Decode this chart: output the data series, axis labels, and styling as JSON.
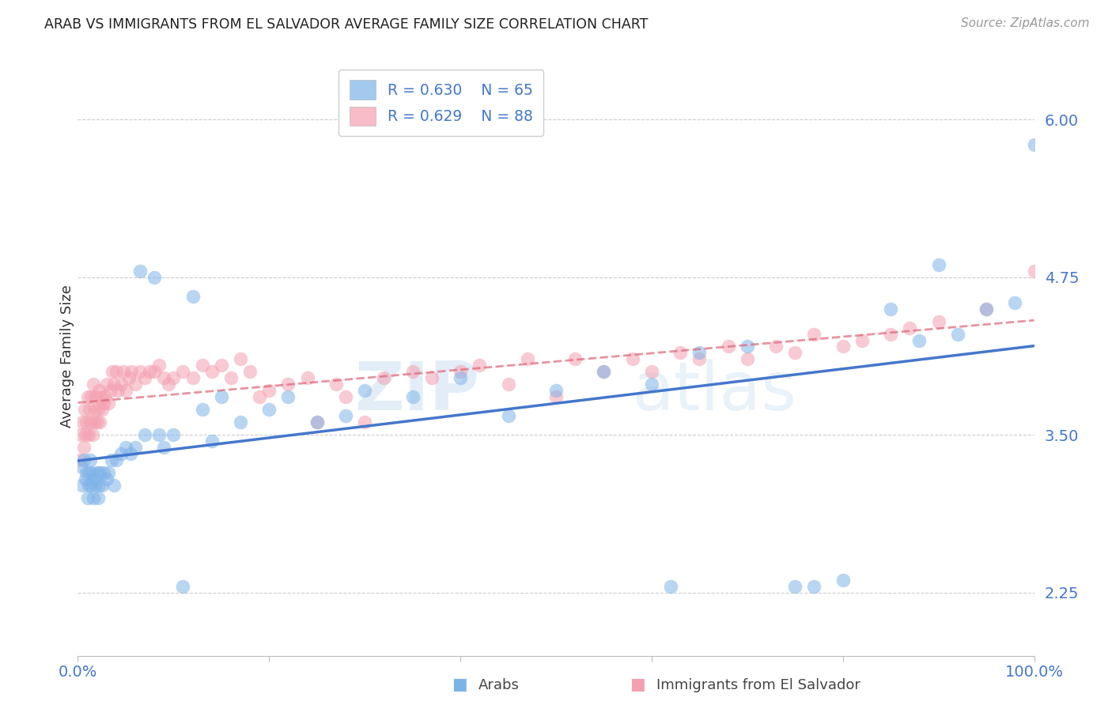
{
  "title": "ARAB VS IMMIGRANTS FROM EL SALVADOR AVERAGE FAMILY SIZE CORRELATION CHART",
  "source": "Source: ZipAtlas.com",
  "ylabel": "Average Family Size",
  "yticks": [
    2.25,
    3.5,
    4.75,
    6.0
  ],
  "ytick_labels": [
    "2.25",
    "3.50",
    "4.75",
    "6.00"
  ],
  "legend_arab_r": "R = 0.630",
  "legend_arab_n": "N = 65",
  "legend_salvador_r": "R = 0.629",
  "legend_salvador_n": "N = 88",
  "legend_label_arab": "Arabs",
  "legend_label_salvador": "Immigrants from El Salvador",
  "arab_color": "#7EB3E8",
  "salvador_color": "#F4A0B0",
  "arab_line_color": "#4477CC",
  "salvador_line_color": "#DD6677",
  "watermark_zip": "ZIP",
  "watermark_atlas": "atlas",
  "xmin": 0,
  "xmax": 100,
  "ymin": 1.75,
  "ymax": 6.5,
  "background_color": "#FFFFFF",
  "grid_color": "#CCCCCC",
  "title_color": "#222222",
  "tick_color": "#4477CC",
  "arab_points_x": [
    0.3,
    0.5,
    0.6,
    0.8,
    0.9,
    1.0,
    1.1,
    1.2,
    1.3,
    1.4,
    1.5,
    1.6,
    1.7,
    1.8,
    2.0,
    2.1,
    2.2,
    2.3,
    2.5,
    2.7,
    3.0,
    3.2,
    3.5,
    3.8,
    4.0,
    4.5,
    5.0,
    5.5,
    6.0,
    6.5,
    7.0,
    8.0,
    8.5,
    9.0,
    10.0,
    11.0,
    12.0,
    13.0,
    14.0,
    15.0,
    17.0,
    20.0,
    22.0,
    25.0,
    28.0,
    30.0,
    35.0,
    40.0,
    45.0,
    50.0,
    55.0,
    60.0,
    62.0,
    65.0,
    70.0,
    75.0,
    77.0,
    80.0,
    85.0,
    88.0,
    90.0,
    92.0,
    95.0,
    98.0,
    100.0
  ],
  "arab_points_y": [
    3.25,
    3.1,
    3.3,
    3.15,
    3.2,
    3.0,
    3.1,
    3.2,
    3.3,
    3.1,
    3.2,
    3.0,
    3.15,
    3.1,
    3.2,
    3.0,
    3.1,
    3.2,
    3.1,
    3.2,
    3.15,
    3.2,
    3.3,
    3.1,
    3.3,
    3.35,
    3.4,
    3.35,
    3.4,
    4.8,
    3.5,
    4.75,
    3.5,
    3.4,
    3.5,
    2.3,
    4.6,
    3.7,
    3.45,
    3.8,
    3.6,
    3.7,
    3.8,
    3.6,
    3.65,
    3.85,
    3.8,
    3.95,
    3.65,
    3.85,
    4.0,
    3.9,
    2.3,
    4.15,
    4.2,
    2.3,
    2.3,
    2.35,
    4.5,
    4.25,
    4.85,
    4.3,
    4.5,
    4.55,
    5.8
  ],
  "salvador_points_x": [
    0.2,
    0.3,
    0.5,
    0.6,
    0.7,
    0.8,
    0.9,
    1.0,
    1.1,
    1.2,
    1.3,
    1.4,
    1.5,
    1.6,
    1.7,
    1.8,
    1.9,
    2.0,
    2.1,
    2.2,
    2.3,
    2.4,
    2.5,
    2.7,
    2.9,
    3.0,
    3.2,
    3.4,
    3.6,
    3.8,
    4.0,
    4.2,
    4.5,
    4.8,
    5.0,
    5.3,
    5.6,
    6.0,
    6.5,
    7.0,
    7.5,
    8.0,
    8.5,
    9.0,
    9.5,
    10.0,
    11.0,
    12.0,
    13.0,
    14.0,
    15.0,
    16.0,
    17.0,
    18.0,
    19.0,
    20.0,
    22.0,
    24.0,
    25.0,
    27.0,
    28.0,
    30.0,
    32.0,
    35.0,
    37.0,
    40.0,
    42.0,
    45.0,
    47.0,
    50.0,
    52.0,
    55.0,
    58.0,
    60.0,
    63.0,
    65.0,
    68.0,
    70.0,
    73.0,
    75.0,
    77.0,
    80.0,
    82.0,
    85.0,
    87.0,
    90.0,
    95.0,
    100.0
  ],
  "salvador_points_y": [
    3.3,
    3.5,
    3.6,
    3.4,
    3.7,
    3.5,
    3.6,
    3.8,
    3.5,
    3.7,
    3.6,
    3.8,
    3.5,
    3.9,
    3.6,
    3.7,
    3.8,
    3.6,
    3.7,
    3.85,
    3.6,
    3.8,
    3.7,
    3.75,
    3.8,
    3.9,
    3.75,
    3.85,
    4.0,
    3.9,
    4.0,
    3.85,
    3.9,
    4.0,
    3.85,
    3.95,
    4.0,
    3.9,
    4.0,
    3.95,
    4.0,
    4.0,
    4.05,
    3.95,
    3.9,
    3.95,
    4.0,
    3.95,
    4.05,
    4.0,
    4.05,
    3.95,
    4.1,
    4.0,
    3.8,
    3.85,
    3.9,
    3.95,
    3.6,
    3.9,
    3.8,
    3.6,
    3.95,
    4.0,
    3.95,
    4.0,
    4.05,
    3.9,
    4.1,
    3.8,
    4.1,
    4.0,
    4.1,
    4.0,
    4.15,
    4.1,
    4.2,
    4.1,
    4.2,
    4.15,
    4.3,
    4.2,
    4.25,
    4.3,
    4.35,
    4.4,
    4.5,
    4.8
  ]
}
